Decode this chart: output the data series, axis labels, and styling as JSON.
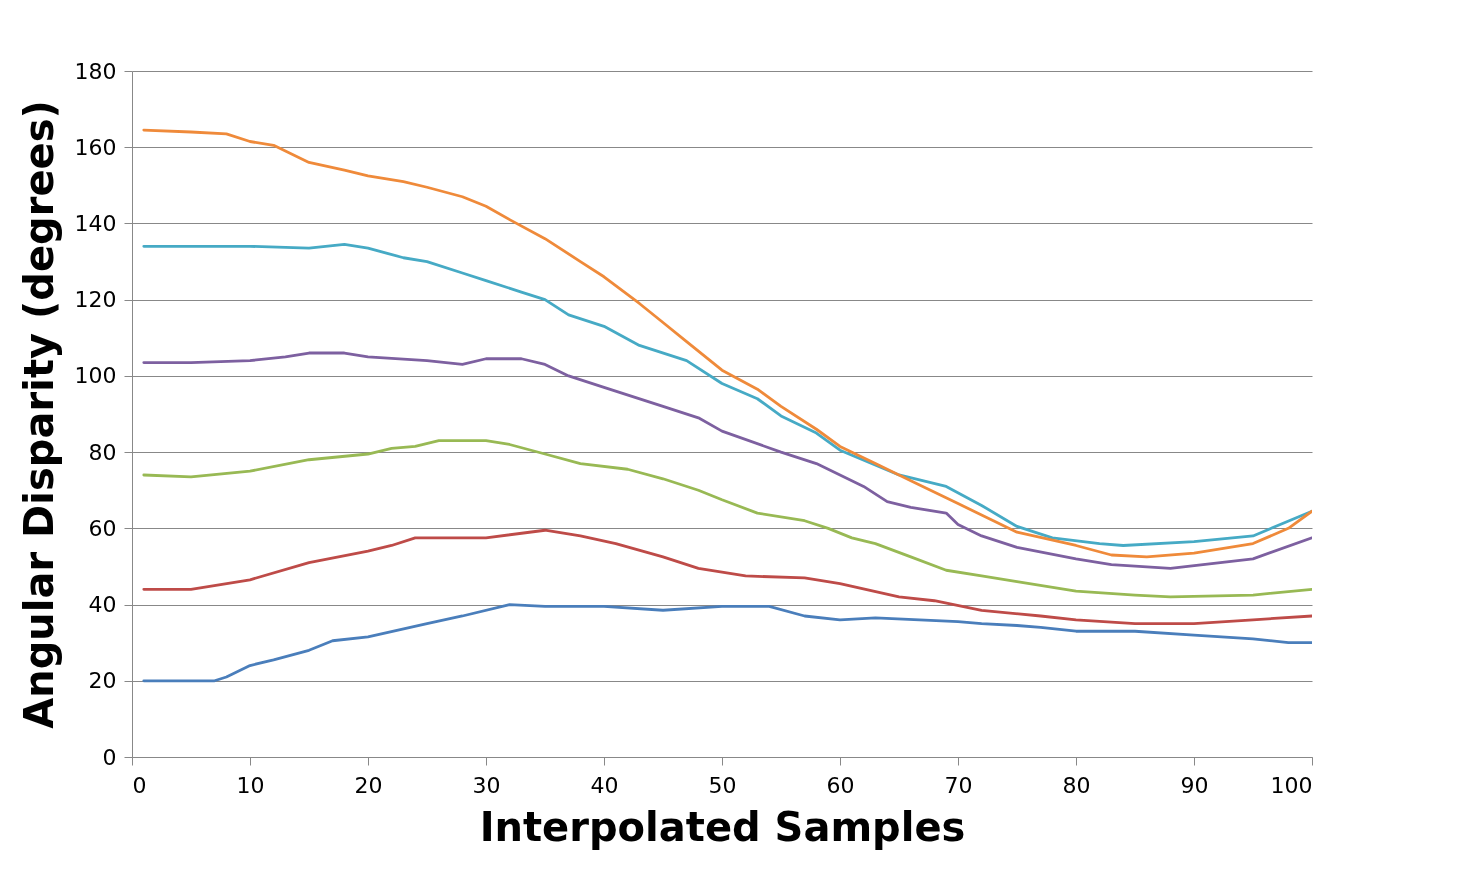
{
  "chart_data": {
    "type": "line",
    "xlabel": "Interpolated Samples",
    "ylabel": "Angular Disparity (degrees)",
    "xlim": [
      0,
      100
    ],
    "xticks": [
      0,
      10,
      20,
      30,
      40,
      50,
      60,
      70,
      80,
      90,
      100
    ],
    "ylim": [
      0,
      180
    ],
    "yticks": [
      0,
      20,
      40,
      60,
      80,
      100,
      120,
      140,
      160,
      180
    ],
    "grid": "y",
    "legend": false,
    "marker": "none",
    "line_style": "solid",
    "series": [
      {
        "color": "#4a7ebb",
        "x": [
          1,
          7,
          8,
          10,
          12,
          15,
          17,
          20,
          25,
          28,
          32,
          35,
          40,
          45,
          50,
          54,
          57,
          60,
          63,
          70,
          72,
          75,
          77,
          80,
          85,
          90,
          95,
          98,
          100
        ],
        "values": [
          20,
          20,
          21,
          24,
          25.5,
          28,
          30.5,
          31.5,
          35,
          37,
          40,
          39.5,
          39.5,
          38.5,
          39.5,
          39.5,
          37,
          36,
          36.5,
          35.5,
          35,
          34.5,
          34,
          33,
          33,
          32,
          31,
          30,
          30
        ]
      },
      {
        "color": "#be4b48",
        "x": [
          1,
          5,
          10,
          15,
          20,
          22,
          24,
          30,
          35,
          38,
          41,
          45,
          48,
          52,
          57,
          60,
          65,
          68,
          72,
          77,
          80,
          85,
          90,
          95,
          100
        ],
        "values": [
          44,
          44,
          46.5,
          51,
          54,
          55.5,
          57.5,
          57.5,
          59.5,
          58,
          56,
          52.5,
          49.5,
          47.5,
          47,
          45.5,
          42,
          41,
          38.5,
          37,
          36,
          35,
          35,
          36,
          37
        ]
      },
      {
        "color": "#98b954",
        "x": [
          1,
          5,
          10,
          15,
          20,
          22,
          24,
          26,
          30,
          32,
          35,
          38,
          42,
          45,
          48,
          50,
          53,
          57,
          59,
          61,
          63,
          66,
          69,
          72,
          75,
          80,
          85,
          88,
          95,
          100
        ],
        "values": [
          74,
          73.5,
          75,
          78,
          79.5,
          81,
          81.5,
          83,
          83,
          82,
          79.5,
          77,
          75.5,
          73,
          70,
          67.5,
          64,
          62,
          60,
          57.5,
          56,
          52.5,
          49,
          47.5,
          46,
          43.5,
          42.5,
          42,
          42.5,
          44
        ]
      },
      {
        "color": "#7d60a0",
        "x": [
          1,
          5,
          10,
          13,
          15,
          18,
          20,
          25,
          28,
          30,
          33,
          35,
          37,
          40,
          45,
          48,
          50,
          55,
          58,
          62,
          64,
          66,
          69,
          70,
          72,
          75,
          80,
          83,
          88,
          95,
          100
        ],
        "values": [
          103.5,
          103.5,
          104,
          105,
          106,
          106,
          105,
          104,
          103,
          104.5,
          104.5,
          103,
          100,
          97,
          92,
          89,
          85.5,
          80,
          77,
          71,
          67,
          65.5,
          64,
          61,
          58,
          55,
          52,
          50.5,
          49.5,
          52,
          57.5
        ]
      },
      {
        "color": "#46aac5",
        "x": [
          1,
          5,
          10,
          15,
          18,
          20,
          23,
          25,
          28,
          30,
          33,
          35,
          37,
          40,
          43,
          47,
          50,
          53,
          55,
          58,
          60,
          65,
          69,
          72,
          75,
          78,
          82,
          84,
          90,
          95,
          100
        ],
        "values": [
          134,
          134,
          134,
          133.5,
          134.5,
          133.5,
          131,
          130,
          127,
          125,
          122,
          120,
          116,
          113,
          108,
          104,
          98,
          94,
          89.5,
          85,
          80.5,
          74,
          71,
          66,
          60.5,
          57.5,
          56,
          55.5,
          56.5,
          58,
          64.5
        ]
      },
      {
        "color": "#ef8a3a",
        "x": [
          1,
          5,
          8,
          10,
          12,
          15,
          18,
          20,
          23,
          25,
          28,
          30,
          32,
          35,
          38,
          40,
          43,
          45,
          47,
          50,
          53,
          55,
          58,
          60,
          63,
          66,
          70,
          73,
          75,
          80,
          83,
          86,
          90,
          95,
          98,
          100
        ],
        "values": [
          164.5,
          164,
          163.5,
          161.5,
          160.5,
          156,
          154,
          152.5,
          151,
          149.5,
          147,
          144.5,
          141,
          136,
          130,
          126,
          119,
          114,
          109,
          101.5,
          96.5,
          92,
          86,
          81.5,
          77,
          72.5,
          66.5,
          62,
          59,
          55.5,
          53,
          52.5,
          53.5,
          56,
          60,
          64.5
        ]
      }
    ]
  }
}
